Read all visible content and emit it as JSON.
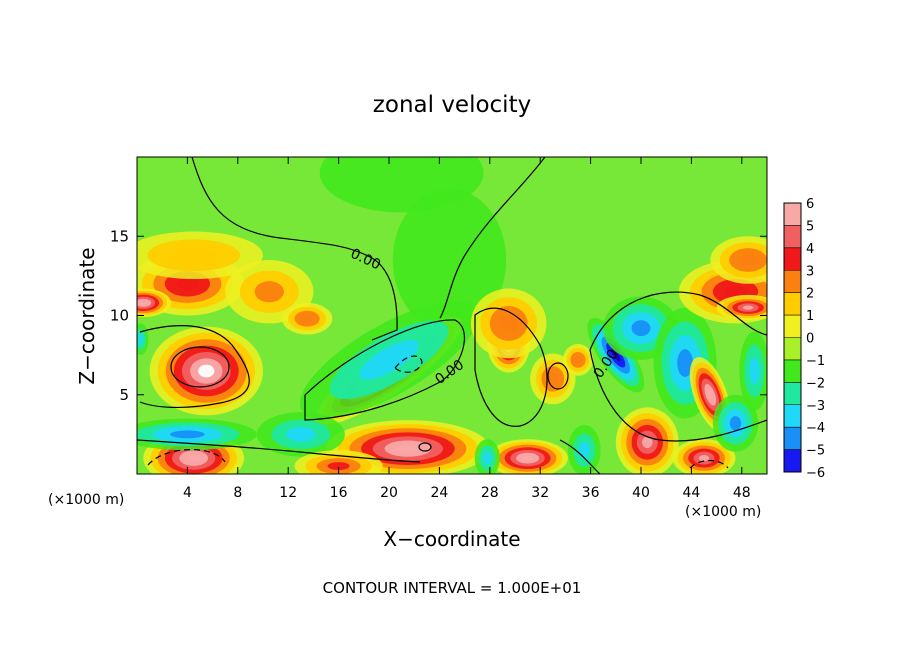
{
  "chart_data": {
    "type": "heatmap",
    "title": "zonal velocity",
    "xlabel": "X−coordinate",
    "ylabel": "Z−coordinate",
    "x_unit_left": "(×1000 m)",
    "x_unit_right": "(×1000 m)",
    "xlim": [
      0,
      50
    ],
    "ylim": [
      0,
      20
    ],
    "x_ticks": [
      4,
      8,
      12,
      16,
      20,
      24,
      28,
      32,
      36,
      40,
      44,
      48
    ],
    "y_ticks": [
      5,
      10,
      15
    ],
    "x_tick_labels": [
      "4",
      "8",
      "12",
      "16",
      "20",
      "24",
      "28",
      "32",
      "36",
      "40",
      "44",
      "48"
    ],
    "y_tick_labels": [
      "5",
      "10",
      "15"
    ],
    "colorbar": {
      "levels": [
        6,
        5,
        4,
        3,
        2,
        1,
        0,
        -1,
        -2,
        -3,
        -4,
        -5,
        -6
      ],
      "labels": [
        "6",
        "5",
        "4",
        "3",
        "2",
        "1",
        "0",
        "−1",
        "−2",
        "−3",
        "−4",
        "−5",
        "−6"
      ],
      "colors": [
        "#f9a8a8",
        "#f06060",
        "#f01818",
        "#fb8010",
        "#ffcc00",
        "#f0f020",
        "#a8f028",
        "#40e81c",
        "#20e8a0",
        "#20d8f8",
        "#1890f8",
        "#1818f0",
        "#1800b8",
        "#8000c0"
      ]
    },
    "background_color": "#78e838",
    "blobs": [
      {
        "cx": 24.8,
        "cy": 13.5,
        "rx": 4.5,
        "ry": 4.5,
        "v": -0.7
      },
      {
        "cx": 21.0,
        "cy": 19.0,
        "rx": 6.5,
        "ry": 2.5,
        "v": -1.0
      },
      {
        "cx": 4.0,
        "cy": 12.0,
        "rx": 4.5,
        "ry": 2.0,
        "v": 4.2
      },
      {
        "cx": 5.5,
        "cy": 6.5,
        "rx": 4.5,
        "ry": 2.8,
        "v": 7.0
      },
      {
        "cx": 0.5,
        "cy": 10.8,
        "rx": 2.2,
        "ry": 0.9,
        "v": 6.5
      },
      {
        "cx": 10.5,
        "cy": 11.5,
        "rx": 3.5,
        "ry": 2.0,
        "v": 3.0
      },
      {
        "cx": 13.5,
        "cy": 9.8,
        "rx": 2.0,
        "ry": 1.0,
        "v": 3.2
      },
      {
        "cx": 4.5,
        "cy": 13.8,
        "rx": 5.5,
        "ry": 1.5,
        "v": 2.2
      },
      {
        "cx": 0.3,
        "cy": 8.5,
        "rx": 0.6,
        "ry": 1.0,
        "v": -3.0
      },
      {
        "cx": 20.0,
        "cy": 6.5,
        "rx": 7.0,
        "ry": 1.4,
        "angle": 35,
        "v": 9.0
      },
      {
        "cx": 20.0,
        "cy": 7.2,
        "rx": 8.0,
        "ry": 2.2,
        "angle": 30,
        "v": -3.0
      },
      {
        "cx": 21.5,
        "cy": 1.6,
        "rx": 6.5,
        "ry": 1.8,
        "v": 6.5
      },
      {
        "cx": 4.5,
        "cy": 1.0,
        "rx": 4.0,
        "ry": 1.7,
        "v": 6.5
      },
      {
        "cx": 4.0,
        "cy": 2.5,
        "rx": 5.5,
        "ry": 1.0,
        "v": -4.0
      },
      {
        "cx": 13.0,
        "cy": 2.5,
        "rx": 3.5,
        "ry": 1.4,
        "v": -3.0
      },
      {
        "cx": 16.0,
        "cy": 0.5,
        "rx": 3.5,
        "ry": 1.0,
        "v": 4.0
      },
      {
        "cx": 29.5,
        "cy": 8.2,
        "rx": 1.7,
        "ry": 1.8,
        "v": 7.0
      },
      {
        "cx": 29.5,
        "cy": 9.5,
        "rx": 3.0,
        "ry": 2.2,
        "v": 3.2
      },
      {
        "cx": 33.0,
        "cy": 6.0,
        "rx": 1.8,
        "ry": 1.6,
        "v": 3.5
      },
      {
        "cx": 35.0,
        "cy": 7.2,
        "rx": 1.2,
        "ry": 1.0,
        "v": 3.5
      },
      {
        "cx": 31.0,
        "cy": 1.0,
        "rx": 3.2,
        "ry": 1.2,
        "v": 6.5
      },
      {
        "cx": 27.8,
        "cy": 1.0,
        "rx": 1.0,
        "ry": 1.2,
        "v": -3.0
      },
      {
        "cx": 35.5,
        "cy": 1.5,
        "rx": 1.3,
        "ry": 1.6,
        "v": -3.0
      },
      {
        "cx": 38.0,
        "cy": 7.5,
        "rx": 3.5,
        "ry": 1.0,
        "angle": -55,
        "v": -5.5
      },
      {
        "cx": 40.0,
        "cy": 9.2,
        "rx": 3.0,
        "ry": 2.0,
        "v": -3.2
      },
      {
        "cx": 43.5,
        "cy": 7.0,
        "rx": 2.5,
        "ry": 3.5,
        "v": -3.5
      },
      {
        "cx": 40.5,
        "cy": 2.0,
        "rx": 2.5,
        "ry": 2.2,
        "v": 6.0
      },
      {
        "cx": 45.5,
        "cy": 5.0,
        "rx": 1.3,
        "ry": 2.5,
        "angle": 20,
        "v": 6.5
      },
      {
        "cx": 45.0,
        "cy": 1.0,
        "rx": 2.5,
        "ry": 1.2,
        "v": 6.0
      },
      {
        "cx": 47.5,
        "cy": 3.2,
        "rx": 1.8,
        "ry": 1.8,
        "v": -3.5
      },
      {
        "cx": 49.0,
        "cy": 6.5,
        "rx": 1.2,
        "ry": 2.5,
        "v": -3.0
      },
      {
        "cx": 47.5,
        "cy": 11.5,
        "rx": 4.5,
        "ry": 2.0,
        "v": 4.5
      },
      {
        "cx": 48.5,
        "cy": 13.5,
        "rx": 3.0,
        "ry": 1.5,
        "v": 3.2
      },
      {
        "cx": 48.5,
        "cy": 10.5,
        "rx": 2.5,
        "ry": 0.8,
        "v": 6.0
      }
    ],
    "contour_labels": [
      {
        "text": "0.00",
        "x": 18.0,
        "y": 13.3,
        "angle": 25
      },
      {
        "text": "0.00",
        "x": 25.0,
        "y": 6.2,
        "angle": -35
      },
      {
        "text": "0.00",
        "x": 37.5,
        "y": 6.8,
        "angle": -55
      }
    ],
    "annotation": "CONTOUR INTERVAL = 1.000E+01"
  }
}
